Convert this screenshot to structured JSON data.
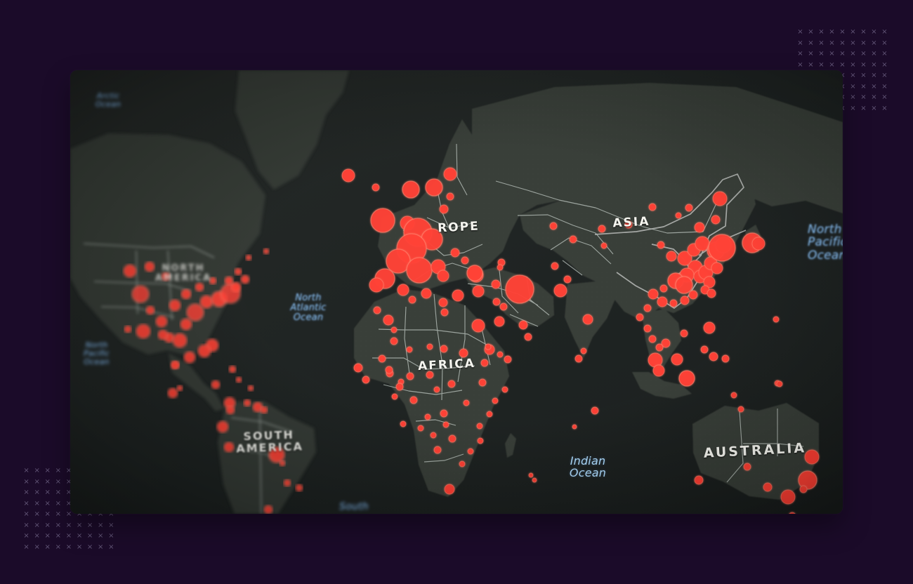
{
  "colors": {
    "background": "#1b0b29",
    "ocean": "#1d2120",
    "land": "#353a33",
    "borders": "#d9e2dc",
    "outbreak_markers": "#ff3d32",
    "ocean_labels": "#8ec8ff"
  },
  "map": {
    "continents": {
      "north_america": "NORTH\nAMERICA",
      "europe": "ROPE",
      "asia": "ASIA",
      "africa": "AFRICA",
      "south_america": "SOUTH\nAMERICA",
      "australia": "AUSTRALIA"
    },
    "oceans": {
      "arctic_partial": "Arctic\nOcean",
      "north_pacific_left": "North\nPacific\nOcean",
      "north_atlantic": "North\nAtlantic\nOcean",
      "indian": "Indian\nOcean",
      "north_pacific_right": "North\nPacific\nOcean",
      "south_partial": "South"
    }
  },
  "decorations": {
    "pattern_glyph": "×"
  }
}
